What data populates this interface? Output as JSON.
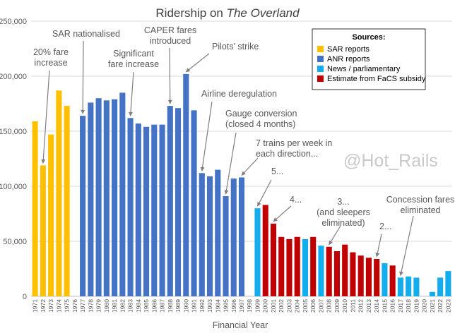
{
  "chart_data": {
    "type": "bar",
    "title_prefix": "Ridership on ",
    "title_italic": "The Overland",
    "xlabel": "Financial Year",
    "ylabel": "",
    "ylim": [
      0,
      250000
    ],
    "y_ticks": [
      0,
      50000,
      100000,
      150000,
      200000,
      250000
    ],
    "y_tick_labels": [
      "0",
      "50,000",
      "100,000",
      "150,000",
      "200,000",
      "250,000"
    ],
    "grid": true,
    "legend_position": "top-right",
    "legend_title": "Sources:",
    "series": [
      {
        "key": "sar",
        "name": "SAR reports",
        "color": "#FFC000"
      },
      {
        "key": "anr",
        "name": "ANR reports",
        "color": "#4472C4"
      },
      {
        "key": "news",
        "name": "News / parliamentary",
        "color": "#13ACEC"
      },
      {
        "key": "facs",
        "name": "Estimate from FaCS subsidy",
        "color": "#C00000"
      }
    ],
    "categories": [
      "1971",
      "1972",
      "1973",
      "1974",
      "1975",
      "1976",
      "1977",
      "1978",
      "1979",
      "1980",
      "1981",
      "1982",
      "1983",
      "1984",
      "1985",
      "1986",
      "1987",
      "1988",
      "1989",
      "1990",
      "1991",
      "1992",
      "1993",
      "1994",
      "1995",
      "1996",
      "1997",
      "1998",
      "1999",
      "2000",
      "2001",
      "2002",
      "2003",
      "2004",
      "2005",
      "2006",
      "2007",
      "2008",
      "2009",
      "2010",
      "2011",
      "2012",
      "2013",
      "2014",
      "2015",
      "2016",
      "2017",
      "2018",
      "2019",
      "2020",
      "2021",
      "2022",
      "2023"
    ],
    "values": [
      159000,
      119000,
      147000,
      187000,
      173000,
      null,
      164000,
      176000,
      180000,
      178000,
      179000,
      185000,
      162000,
      157000,
      154000,
      156000,
      156000,
      173000,
      171000,
      202000,
      169000,
      112000,
      109000,
      115000,
      91000,
      107000,
      108000,
      null,
      80000,
      83000,
      66000,
      54000,
      52000,
      54000,
      52000,
      54000,
      46000,
      45000,
      41000,
      47000,
      40000,
      37000,
      35000,
      34000,
      30000,
      28000,
      17000,
      18000,
      17000,
      null,
      4000,
      17000,
      23000
    ],
    "sources": [
      "sar",
      "sar",
      "sar",
      "sar",
      "sar",
      null,
      "anr",
      "anr",
      "anr",
      "anr",
      "anr",
      "anr",
      "anr",
      "anr",
      "anr",
      "anr",
      "anr",
      "anr",
      "anr",
      "anr",
      "anr",
      "anr",
      "anr",
      "anr",
      "anr",
      "anr",
      "anr",
      null,
      "news",
      "facs",
      "facs",
      "facs",
      "facs",
      "facs",
      "news",
      "facs",
      "news",
      "facs",
      "facs",
      "facs",
      "facs",
      "facs",
      "facs",
      "facs",
      "news",
      "facs",
      "news",
      "news",
      "news",
      null,
      "news",
      "news",
      "news"
    ],
    "annotations": [
      {
        "lines": [
          "SAR nationalised"
        ],
        "year": "1977"
      },
      {
        "lines": [
          "20% fare",
          "increase"
        ],
        "year": "1972"
      },
      {
        "lines": [
          "CAPER fares",
          "introduced"
        ],
        "year": "1988"
      },
      {
        "lines": [
          "Significant",
          "fare increase"
        ],
        "year": "1983"
      },
      {
        "lines": [
          "Pilots' strike"
        ],
        "year": "1990"
      },
      {
        "lines": [
          "Airline deregulation"
        ],
        "year": "1992"
      },
      {
        "lines": [
          "Gauge conversion",
          "(closed 4 months)"
        ],
        "year": "1995"
      },
      {
        "lines": [
          "7 trains per week in",
          "each direction..."
        ],
        "year": "1997"
      },
      {
        "lines": [
          "5..."
        ],
        "year": "1999"
      },
      {
        "lines": [
          "4..."
        ],
        "year": "2001"
      },
      {
        "lines": [
          "3...",
          "(and sleepers",
          "eliminated)"
        ],
        "year": "2008"
      },
      {
        "lines": [
          "2..."
        ],
        "year": "2014"
      },
      {
        "lines": [
          "Concession fares",
          "eliminated"
        ],
        "year": "2017"
      }
    ],
    "watermark": "@Hot_Rails"
  }
}
